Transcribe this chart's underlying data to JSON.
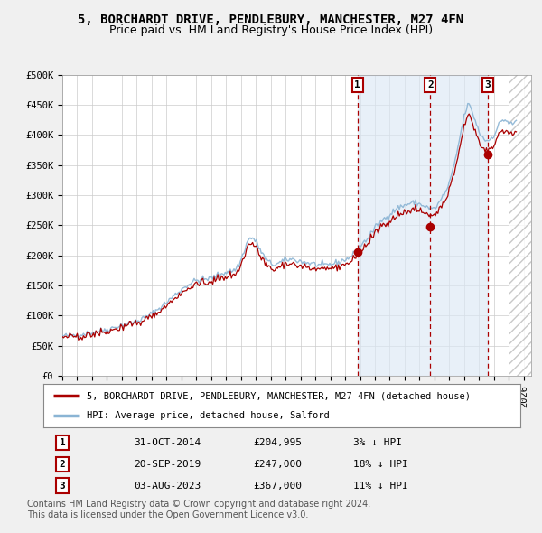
{
  "title": "5, BORCHARDT DRIVE, PENDLEBURY, MANCHESTER, M27 4FN",
  "subtitle": "Price paid vs. HM Land Registry's House Price Index (HPI)",
  "background_color": "#f0f0f0",
  "plot_bg_color": "#ffffff",
  "grid_color": "#cccccc",
  "hpi_color": "#8ab4d4",
  "price_color": "#aa0000",
  "shade_color": "#dce8f5",
  "ylim": [
    0,
    500000
  ],
  "ytick_values": [
    0,
    50000,
    100000,
    150000,
    200000,
    250000,
    300000,
    350000,
    400000,
    450000,
    500000
  ],
  "ytick_labels": [
    "£0",
    "£50K",
    "£100K",
    "£150K",
    "£200K",
    "£250K",
    "£300K",
    "£350K",
    "£400K",
    "£450K",
    "£500K"
  ],
  "xlim_start": 1995.0,
  "xlim_end": 2026.5,
  "xtick_years": [
    1995,
    1996,
    1997,
    1998,
    1999,
    2000,
    2001,
    2002,
    2003,
    2004,
    2005,
    2006,
    2007,
    2008,
    2009,
    2010,
    2011,
    2012,
    2013,
    2014,
    2015,
    2016,
    2017,
    2018,
    2019,
    2020,
    2021,
    2022,
    2023,
    2024,
    2025,
    2026
  ],
  "sale_dates": [
    2014.833,
    2019.722,
    2023.583
  ],
  "sale_prices": [
    204995,
    247000,
    367000
  ],
  "sale_labels": [
    "1",
    "2",
    "3"
  ],
  "sale_label_dates": [
    "31-OCT-2014",
    "20-SEP-2019",
    "03-AUG-2023"
  ],
  "sale_label_prices": [
    "£204,995",
    "£247,000",
    "£367,000"
  ],
  "sale_label_hpi": [
    "3% ↓ HPI",
    "18% ↓ HPI",
    "11% ↓ HPI"
  ],
  "legend_label_price": "5, BORCHARDT DRIVE, PENDLEBURY, MANCHESTER, M27 4FN (detached house)",
  "legend_label_hpi": "HPI: Average price, detached house, Salford",
  "footer_text": "Contains HM Land Registry data © Crown copyright and database right 2024.\nThis data is licensed under the Open Government Licence v3.0.",
  "title_fontsize": 10,
  "subtitle_fontsize": 9,
  "tick_fontsize": 7.5,
  "legend_fontsize": 8,
  "footer_fontsize": 7
}
